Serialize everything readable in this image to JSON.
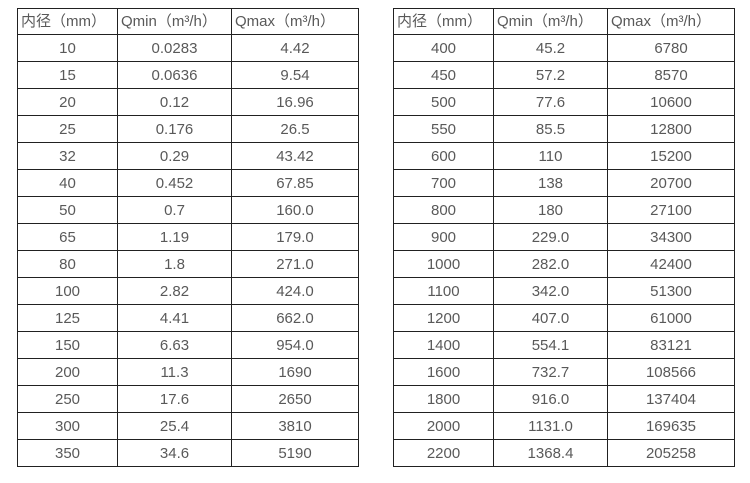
{
  "page": {
    "background": "#ffffff",
    "border_color": "#212121",
    "text_color": "#595959"
  },
  "tables": [
    {
      "name": "small-diameter-flow-range",
      "headers": [
        "内径（mm）",
        "Qmin（m³/h）",
        "Qmax（m³/h）"
      ],
      "rows": [
        [
          "10",
          "0.0283",
          "4.42"
        ],
        [
          "15",
          "0.0636",
          "9.54"
        ],
        [
          "20",
          "0.12",
          "16.96"
        ],
        [
          "25",
          "0.176",
          "26.5"
        ],
        [
          "32",
          "0.29",
          "43.42"
        ],
        [
          "40",
          "0.452",
          "67.85"
        ],
        [
          "50",
          "0.7",
          "160.0"
        ],
        [
          "65",
          "1.19",
          "179.0"
        ],
        [
          "80",
          "1.8",
          "271.0"
        ],
        [
          "100",
          "2.82",
          "424.0"
        ],
        [
          "125",
          "4.41",
          "662.0"
        ],
        [
          "150",
          "6.63",
          "954.0"
        ],
        [
          "200",
          "11.3",
          "1690"
        ],
        [
          "250",
          "17.6",
          "2650"
        ],
        [
          "300",
          "25.4",
          "3810"
        ],
        [
          "350",
          "34.6",
          "5190"
        ]
      ]
    },
    {
      "name": "large-diameter-flow-range",
      "headers": [
        "内径（mm）",
        "Qmin（m³/h）",
        "Qmax（m³/h）"
      ],
      "rows": [
        [
          "400",
          "45.2",
          "6780"
        ],
        [
          "450",
          "57.2",
          "8570"
        ],
        [
          "500",
          "77.6",
          "10600"
        ],
        [
          "550",
          "85.5",
          "12800"
        ],
        [
          "600",
          "110",
          "15200"
        ],
        [
          "700",
          "138",
          "20700"
        ],
        [
          "800",
          "180",
          "27100"
        ],
        [
          "900",
          "229.0",
          "34300"
        ],
        [
          "1000",
          "282.0",
          "42400"
        ],
        [
          "1100",
          "342.0",
          "51300"
        ],
        [
          "1200",
          "407.0",
          "61000"
        ],
        [
          "1400",
          "554.1",
          "83121"
        ],
        [
          "1600",
          "732.7",
          "108566"
        ],
        [
          "1800",
          "916.0",
          "137404"
        ],
        [
          "2000",
          "1131.0",
          "169635"
        ],
        [
          "2200",
          "1368.4",
          "205258"
        ]
      ]
    }
  ]
}
